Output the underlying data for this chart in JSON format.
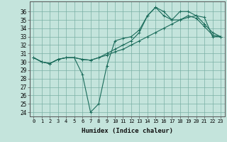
{
  "xlabel": "Humidex (Indice chaleur)",
  "bg_color": "#c4e4dc",
  "grid_color": "#7ab0a4",
  "line_color": "#1a6b5a",
  "xlim": [
    -0.5,
    23.5
  ],
  "ylim": [
    23.5,
    37.2
  ],
  "xticks": [
    0,
    1,
    2,
    3,
    4,
    5,
    6,
    7,
    8,
    9,
    10,
    11,
    12,
    13,
    14,
    15,
    16,
    17,
    18,
    19,
    20,
    21,
    22,
    23
  ],
  "yticks": [
    24,
    25,
    26,
    27,
    28,
    29,
    30,
    31,
    32,
    33,
    34,
    35,
    36
  ],
  "line1_x": [
    0,
    1,
    2,
    3,
    4,
    5,
    6,
    7,
    8,
    9,
    10,
    11,
    12,
    13,
    14,
    15,
    16,
    17,
    18,
    19,
    20,
    21,
    22,
    23
  ],
  "line1_y": [
    30.5,
    30.0,
    29.8,
    30.3,
    30.5,
    30.5,
    28.5,
    24.0,
    25.0,
    29.5,
    32.5,
    32.8,
    33.0,
    33.8,
    35.5,
    36.5,
    36.0,
    35.0,
    35.0,
    35.5,
    35.2,
    34.2,
    33.2,
    33.0
  ],
  "line2_x": [
    0,
    1,
    2,
    3,
    4,
    5,
    6,
    7,
    8,
    9,
    10,
    11,
    12,
    13,
    14,
    15,
    16,
    17,
    18,
    19,
    20,
    21,
    22,
    23
  ],
  "line2_y": [
    30.5,
    30.0,
    29.8,
    30.3,
    30.5,
    30.5,
    30.3,
    30.2,
    30.5,
    30.8,
    31.2,
    31.5,
    32.0,
    32.5,
    33.0,
    33.5,
    34.0,
    34.5,
    35.0,
    35.3,
    35.5,
    35.3,
    33.0,
    33.0
  ],
  "line3_x": [
    0,
    1,
    2,
    3,
    4,
    5,
    6,
    7,
    8,
    9,
    10,
    11,
    12,
    13,
    14,
    15,
    16,
    17,
    18,
    19,
    20,
    21,
    22,
    23
  ],
  "line3_y": [
    30.5,
    30.0,
    29.8,
    30.3,
    30.5,
    30.5,
    30.3,
    30.2,
    30.5,
    31.0,
    31.5,
    32.0,
    32.5,
    33.5,
    35.5,
    36.5,
    35.5,
    35.0,
    36.0,
    36.0,
    35.5,
    34.5,
    33.5,
    33.0
  ]
}
